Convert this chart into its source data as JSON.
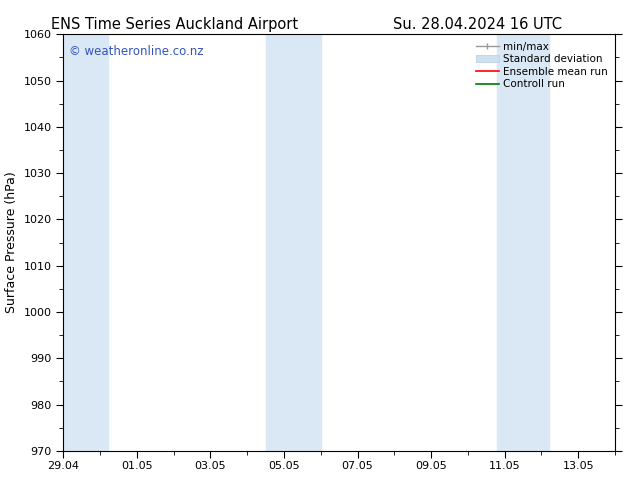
{
  "title1": "ENS Time Series Auckland Airport",
  "title2": "Su. 28.04.2024 16 UTC",
  "ylabel": "Surface Pressure (hPa)",
  "ylim": [
    970,
    1060
  ],
  "yticks": [
    970,
    980,
    990,
    1000,
    1010,
    1020,
    1030,
    1040,
    1050,
    1060
  ],
  "xlim": [
    0,
    15
  ],
  "xtick_positions": [
    0,
    2,
    4,
    6,
    8,
    10,
    12,
    14
  ],
  "xtick_labels": [
    "29.04",
    "01.05",
    "03.05",
    "05.05",
    "07.05",
    "09.05",
    "11.05",
    "13.05"
  ],
  "background_color": "#ffffff",
  "plot_bg_color": "#ffffff",
  "shaded_bands": [
    {
      "x_start": 0,
      "x_end": 1.2,
      "color": "#dae8f5"
    },
    {
      "x_start": 5.5,
      "x_end": 7.0,
      "color": "#dae8f5"
    },
    {
      "x_start": 11.8,
      "x_end": 13.2,
      "color": "#dae8f5"
    }
  ],
  "watermark_text": "© weatheronline.co.nz",
  "watermark_color": "#3355bb",
  "legend_labels": [
    "min/max",
    "Standard deviation",
    "Ensemble mean run",
    "Controll run"
  ],
  "legend_colors_line": [
    "#999999",
    "#bbccdd",
    "#ff0000",
    "#007700"
  ],
  "tick_color": "#000000",
  "axis_color": "#000000",
  "font_size_title": 10.5,
  "font_size_axis": 9,
  "font_size_tick": 8,
  "font_size_legend": 7.5,
  "font_size_watermark": 8.5
}
